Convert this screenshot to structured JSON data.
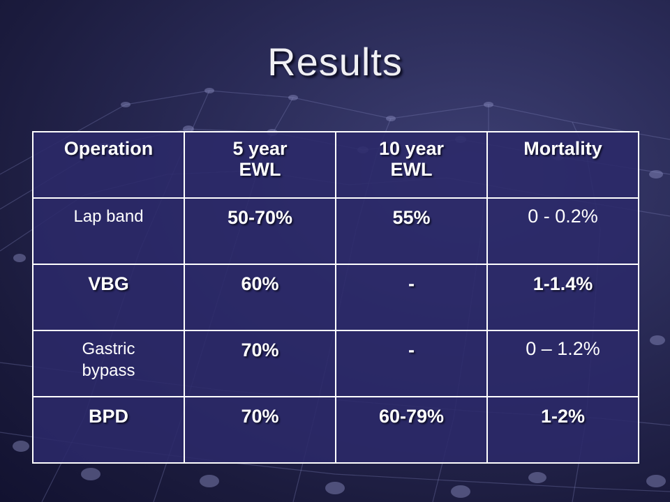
{
  "slide": {
    "title": "Results"
  },
  "table": {
    "headers": [
      [
        "Operation"
      ],
      [
        "5 year",
        "EWL"
      ],
      [
        "10 year",
        "EWL"
      ],
      [
        "Mortality"
      ]
    ],
    "rows": [
      {
        "operation": [
          "Lap band"
        ],
        "five_year": "50-70%",
        "ten_year": "55%",
        "mortality": "0 - 0.2%"
      },
      {
        "operation": [
          "VBG"
        ],
        "five_year": "60%",
        "ten_year": "-",
        "mortality": "1-1.4%"
      },
      {
        "operation": [
          "Gastric",
          "bypass"
        ],
        "five_year": "70%",
        "ten_year": "-",
        "mortality": "0 – 1.2%"
      },
      {
        "operation": [
          "BPD"
        ],
        "five_year": "70%",
        "ten_year": "60-79%",
        "mortality": "1-2%"
      }
    ]
  }
}
